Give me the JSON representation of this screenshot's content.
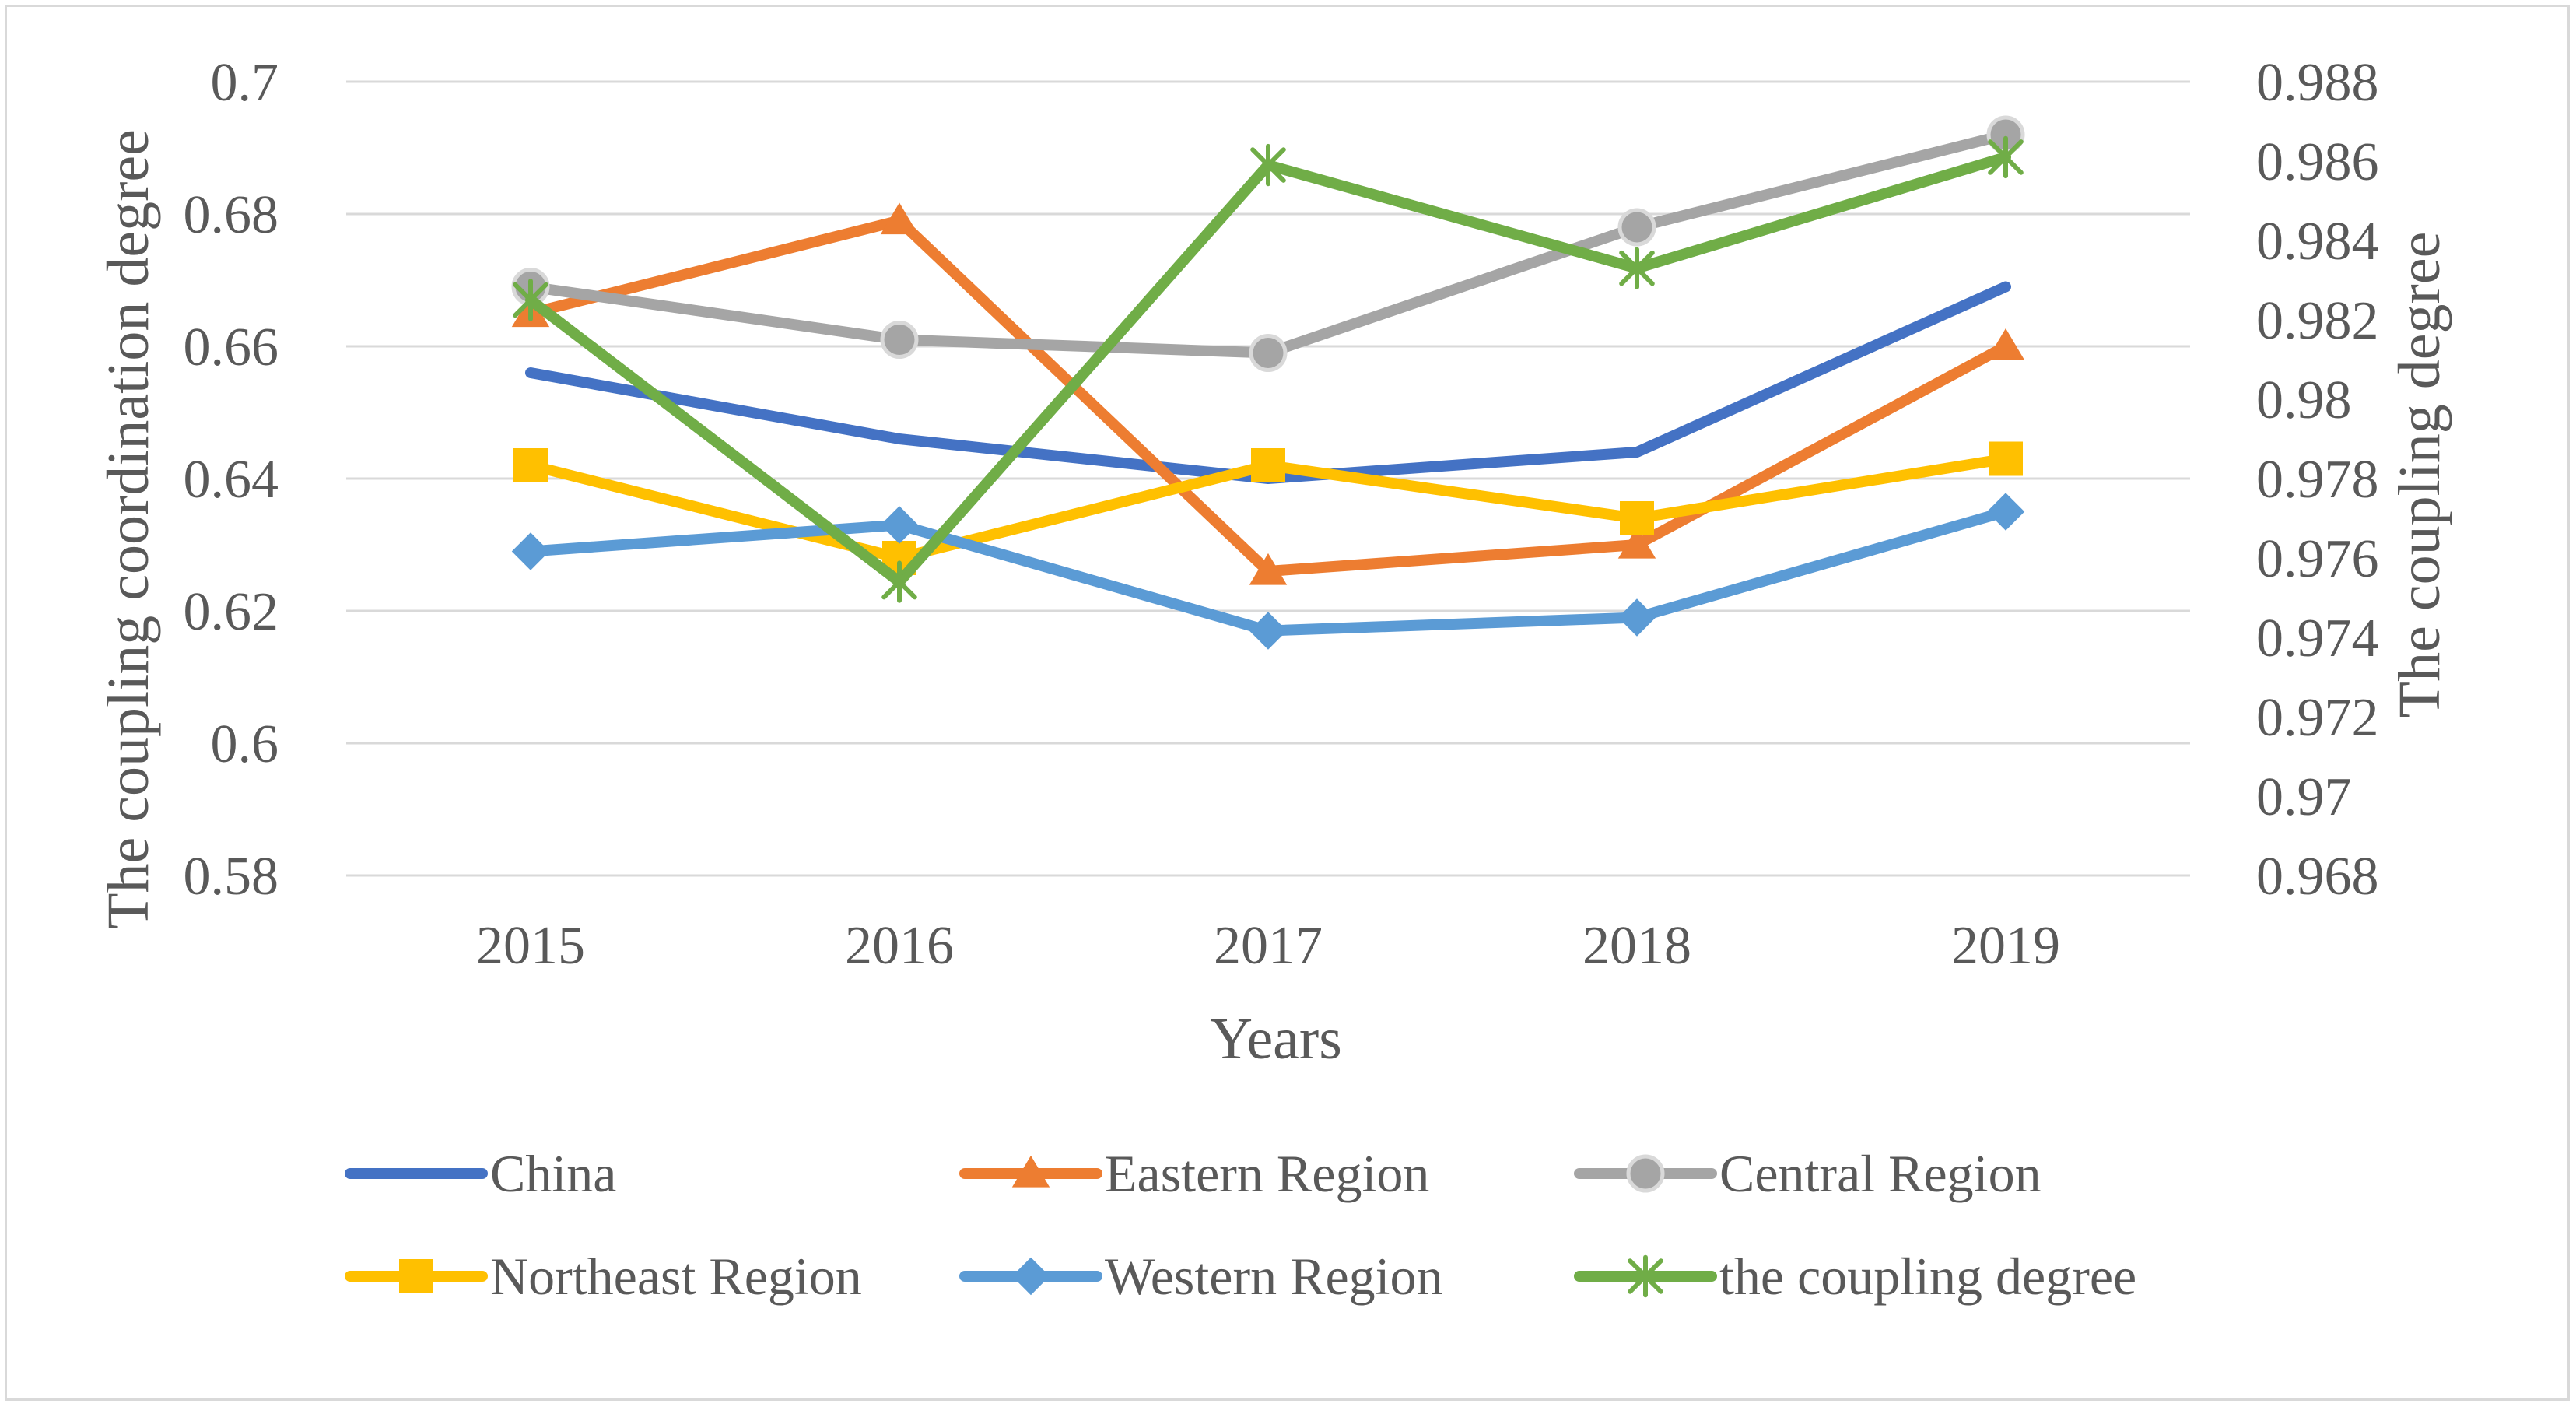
{
  "chart_data": {
    "type": "line",
    "categories": [
      "2015",
      "2016",
      "2017",
      "2018",
      "2019"
    ],
    "xlabel": "Years",
    "ylabel": "The coupling coordination degree",
    "y2label": "The coupling degree",
    "ylim": [
      0.58,
      0.7
    ],
    "y2lim": [
      0.968,
      0.988
    ],
    "yticks": [
      "0.58",
      "0.6",
      "0.62",
      "0.64",
      "0.66",
      "0.68",
      "0.7"
    ],
    "y2ticks": [
      "0.968",
      "0.97",
      "0.972",
      "0.974",
      "0.976",
      "0.978",
      "0.98",
      "0.982",
      "0.984",
      "0.986",
      "0.988"
    ],
    "grid": true,
    "legend_position": "bottom",
    "series": [
      {
        "name": "China",
        "axis": "left",
        "color": "#4472C4",
        "marker": "none",
        "values": [
          0.656,
          0.646,
          0.64,
          0.644,
          0.669
        ]
      },
      {
        "name": "Eastern Region",
        "axis": "left",
        "color": "#ED7D31",
        "marker": "triangle",
        "values": [
          0.665,
          0.679,
          0.626,
          0.63,
          0.66
        ]
      },
      {
        "name": "Central Region",
        "axis": "left",
        "color": "#A5A5A5",
        "marker": "circle",
        "values": [
          0.669,
          0.661,
          0.659,
          0.678,
          0.692
        ]
      },
      {
        "name": "Northeast Region",
        "axis": "left",
        "color": "#FFC000",
        "marker": "square",
        "values": [
          0.642,
          0.628,
          0.642,
          0.634,
          0.643
        ]
      },
      {
        "name": "Western Region",
        "axis": "left",
        "color": "#5B9BD5",
        "marker": "diamond",
        "values": [
          0.629,
          0.633,
          0.617,
          0.619,
          0.635
        ]
      },
      {
        "name": "the coupling degree",
        "axis": "right",
        "color": "#70AD47",
        "marker": "asterisk",
        "values": [
          0.9825,
          0.9754,
          0.9859,
          0.9833,
          0.9861
        ]
      }
    ]
  }
}
